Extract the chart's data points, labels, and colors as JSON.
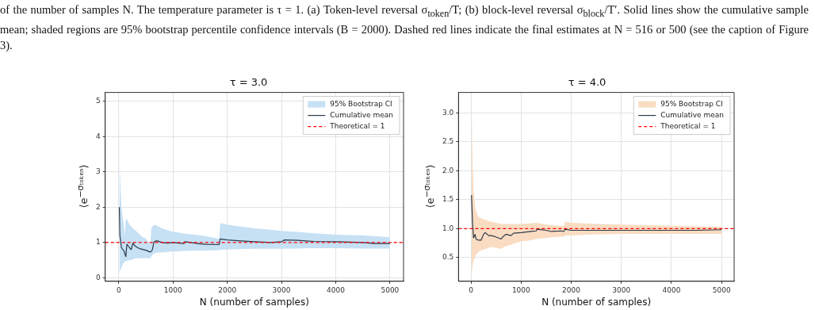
{
  "chart_data": [
    {
      "type": "line",
      "title": "τ = 3.0",
      "xlabel": "N (number of samples)",
      "ylabel": "⟨e$^{−σₜₒₖₑₙ}$⟩",
      "annotations": [
        "of the number of samples N. The temperature parameter is τ = 1. (a) Token-level reversal σ$_{token}$/T; (b) block-level reversal σ$_{block}$/T′. Solid lines show the cumulative sample mean; shaded regions are 95% bootstrap percentile confidence intervals (B = 2000). Dashed red lines indicate the final estimates at N = 516 or 500 (see the caption of Figure 3)."
      ],
      "xlim": [
        -250,
        5250
      ],
      "xticks": [
        0,
        1000,
        2000,
        3000,
        4000,
        5000
      ],
      "ylim": [
        -0.1,
        5.25
      ],
      "yticks": [
        0,
        1,
        2,
        3,
        4,
        5
      ],
      "grid": true,
      "legend": "top right",
      "series": [
        {
          "name": "95% Bootstrap CI",
          "type": "area",
          "color": "#c6e0f4"
        },
        {
          "name": "Cumulative mean",
          "color": "#2d3a4a",
          "x": [
            10,
            20,
            50,
            100,
            110,
            130,
            150,
            200,
            230,
            260,
            300,
            350,
            400,
            500,
            580,
            600,
            620,
            650,
            700,
            800,
            900,
            1000,
            1100,
            1200,
            1220,
            1400,
            1500,
            1600,
            1850,
            1870,
            2000,
            2200,
            2500,
            2800,
            3000,
            3050,
            3300,
            3500,
            3600,
            4000,
            4500,
            4700,
            5000
          ],
          "values": [
            2.0,
            1.2,
            0.85,
            0.75,
            0.68,
            0.6,
            0.95,
            0.85,
            0.8,
            0.98,
            0.9,
            0.85,
            0.82,
            0.78,
            0.73,
            0.75,
            0.8,
            1.02,
            1.05,
            1.0,
            0.98,
            1.0,
            0.98,
            0.97,
            1.02,
            0.98,
            0.96,
            0.95,
            0.94,
            1.1,
            1.07,
            1.05,
            1.02,
            1.0,
            1.02,
            1.07,
            1.06,
            1.04,
            1.03,
            1.02,
            1.0,
            0.97,
            0.97
          ],
          "upper": [
            5.0,
            3.0,
            2.0,
            1.4,
            1.15,
            1.7,
            1.65,
            1.5,
            1.45,
            1.4,
            1.35,
            1.28,
            1.2,
            1.1,
            0.95,
            1.4,
            1.45,
            1.5,
            1.48,
            1.4,
            1.35,
            1.3,
            1.28,
            1.25,
            1.25,
            1.22,
            1.2,
            1.18,
            1.1,
            1.55,
            1.5,
            1.46,
            1.4,
            1.36,
            1.33,
            1.32,
            1.3,
            1.27,
            1.26,
            1.22,
            1.2,
            1.18,
            1.15
          ],
          "lower": [
            0.1,
            0.2,
            0.3,
            0.45,
            0.45,
            0.47,
            0.48,
            0.5,
            0.51,
            0.52,
            0.55,
            0.55,
            0.55,
            0.55,
            0.55,
            0.6,
            0.65,
            0.7,
            0.71,
            0.72,
            0.73,
            0.75,
            0.75,
            0.76,
            0.76,
            0.77,
            0.77,
            0.77,
            0.78,
            0.8,
            0.8,
            0.81,
            0.82,
            0.82,
            0.82,
            0.82,
            0.83,
            0.84,
            0.84,
            0.84,
            0.83,
            0.83,
            0.83
          ]
        }
      ],
      "ref_lines": [
        {
          "axis": "y",
          "value": 1,
          "label": "Theoretical = 1",
          "color": "#ff0000",
          "line_style": "dashed"
        }
      ]
    },
    {
      "type": "line",
      "title": "τ = 4.0",
      "xlabel": "N (number of samples)",
      "ylabel": "⟨e$^{−σₜₒₖₑₙ}$⟩",
      "xlim": [
        -250,
        5250
      ],
      "xticks": [
        0,
        1000,
        2000,
        3000,
        4000,
        5000
      ],
      "ylim": [
        0.09,
        3.35
      ],
      "yticks": [
        0.5,
        {
          "value": 1,
          "label": "1.0"
        },
        1.5,
        {
          "value": 2,
          "label": "2.0"
        },
        2.5,
        {
          "value": 3,
          "label": "3.0"
        }
      ],
      "grid": true,
      "legend": "top right",
      "series": [
        {
          "name": "95% Bootstrap CI",
          "type": "area",
          "color": "#f9dcc2"
        },
        {
          "name": "Cumulative mean",
          "color": "#2d3a4a",
          "x": [
            10,
            30,
            50,
            80,
            100,
            150,
            200,
            250,
            280,
            300,
            350,
            400,
            450,
            600,
            650,
            700,
            800,
            850,
            1000,
            1200,
            1300,
            1320,
            1500,
            1600,
            1800,
            1850,
            1880,
            2000,
            2500,
            3000,
            3500,
            4000,
            4500,
            5000
          ],
          "values": [
            1.58,
            1.1,
            0.84,
            0.9,
            0.82,
            0.8,
            0.8,
            0.9,
            0.93,
            0.92,
            0.88,
            0.88,
            0.87,
            0.82,
            0.87,
            0.9,
            0.88,
            0.92,
            0.93,
            0.95,
            0.96,
            0.99,
            0.97,
            0.95,
            0.96,
            0.95,
            0.99,
            0.97,
            0.97,
            0.97,
            0.97,
            0.97,
            0.97,
            0.98
          ],
          "upper": [
            3.2,
            2.2,
            1.67,
            1.4,
            1.3,
            1.2,
            1.18,
            1.16,
            1.15,
            1.15,
            1.13,
            1.12,
            1.11,
            1.08,
            1.08,
            1.08,
            1.08,
            1.08,
            1.08,
            1.09,
            1.1,
            1.1,
            1.07,
            1.06,
            1.05,
            1.05,
            1.12,
            1.1,
            1.08,
            1.07,
            1.06,
            1.05,
            1.04,
            1.03
          ],
          "lower": [
            0.2,
            0.35,
            0.45,
            0.5,
            0.55,
            0.6,
            0.62,
            0.64,
            0.65,
            0.65,
            0.67,
            0.68,
            0.68,
            0.65,
            0.68,
            0.7,
            0.72,
            0.74,
            0.78,
            0.8,
            0.82,
            0.82,
            0.84,
            0.85,
            0.86,
            0.86,
            0.88,
            0.88,
            0.9,
            0.91,
            0.91,
            0.91,
            0.91,
            0.91
          ]
        }
      ],
      "ref_lines": [
        {
          "axis": "y",
          "value": 1,
          "label": "Theoretical = 1",
          "color": "#ff0000",
          "line_style": "dashed"
        }
      ]
    }
  ]
}
